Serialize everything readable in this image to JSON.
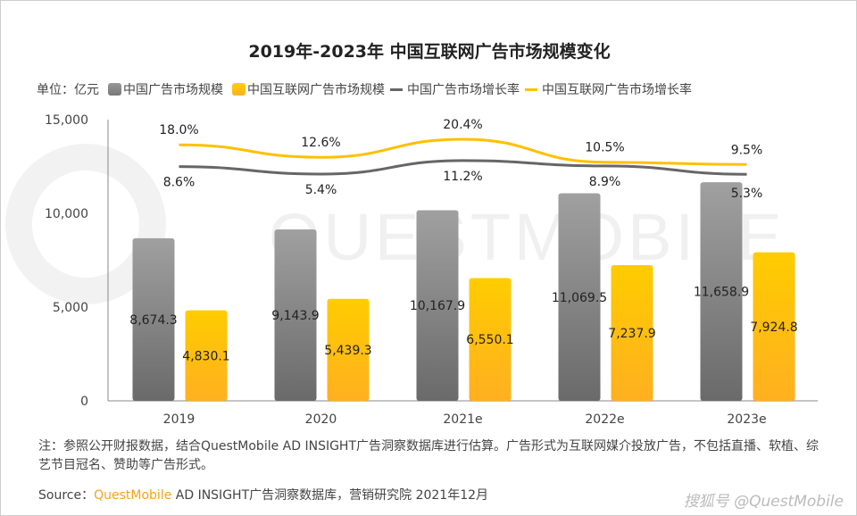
{
  "chart_data": {
    "type": "bar+line",
    "title": "2019年-2023年 中国互联网广告市场规模变化",
    "unit_label": "单位：亿元",
    "categories": [
      "2019",
      "2020",
      "2021e",
      "2022e",
      "2023e"
    ],
    "ylim": [
      0,
      15000
    ],
    "yticks": [
      "0",
      "5,000",
      "10,000",
      "15,000"
    ],
    "ytick_values": [
      0,
      5000,
      10000,
      15000
    ],
    "grid": false,
    "legend_position": "top",
    "series": [
      {
        "name": "中国广告市场规模",
        "type": "bar",
        "color": "#808080",
        "values": [
          8674.3,
          9143.9,
          10167.9,
          11069.5,
          11658.9
        ],
        "labels": [
          "8,674.3",
          "9,143.9",
          "10,167.9",
          "11,069.5",
          "11,658.9"
        ]
      },
      {
        "name": "中国互联网广告市场规模",
        "type": "bar",
        "color": "#ffc000",
        "values": [
          4830.1,
          5439.3,
          6550.1,
          7237.9,
          7924.8
        ],
        "labels": [
          "4,830.1",
          "5,439.3",
          "6,550.1",
          "7,237.9",
          "7,924.8"
        ]
      },
      {
        "name": "中国广告市场增长率",
        "type": "line",
        "color": "#666666",
        "values": [
          8.6,
          5.4,
          11.2,
          8.9,
          5.3
        ],
        "labels": [
          "8.6%",
          "5.4%",
          "11.2%",
          "8.9%",
          "5.3%"
        ]
      },
      {
        "name": "中国互联网广告市场增长率",
        "type": "line",
        "color": "#ffc000",
        "values": [
          18.0,
          12.6,
          20.4,
          10.5,
          9.5
        ],
        "labels": [
          "18.0%",
          "12.6%",
          "20.4%",
          "10.5%",
          "9.5%"
        ]
      }
    ]
  },
  "note": "注：参照公开财报数据，结合QuestMobile AD INSIGHT广告洞察数据库进行估算。广告形式为互联网媒介投放广告，不包括直播、软植、综艺节目冠名、赞助等广告形式。",
  "source": {
    "label": "Source：",
    "brand": "QuestMobile",
    "rest": " AD INSIGHT广告洞察数据库，营销研究院 2021年12月"
  },
  "watermark": "搜狐号 @QuestMobile",
  "background_watermark": "QUESTMOBILE"
}
